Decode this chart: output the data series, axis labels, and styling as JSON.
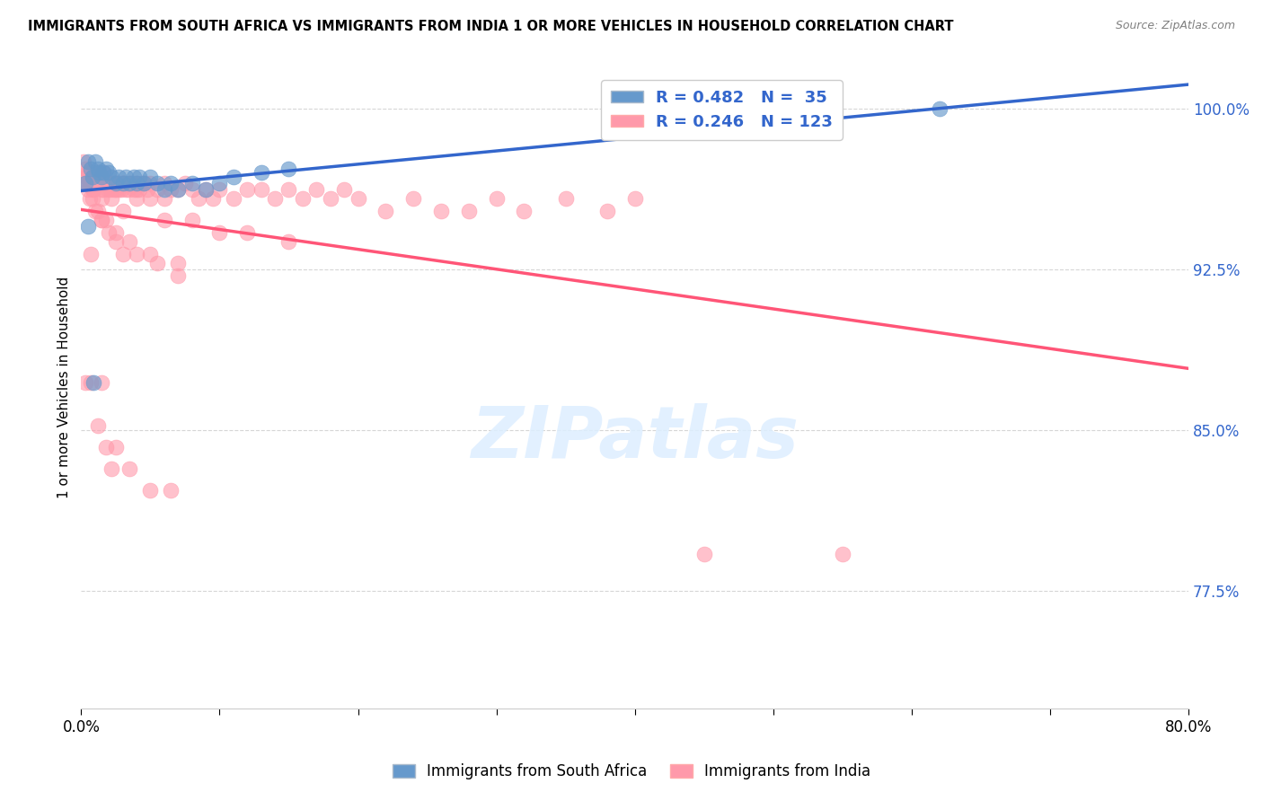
{
  "title": "IMMIGRANTS FROM SOUTH AFRICA VS IMMIGRANTS FROM INDIA 1 OR MORE VEHICLES IN HOUSEHOLD CORRELATION CHART",
  "source": "Source: ZipAtlas.com",
  "ylabel": "1 or more Vehicles in Household",
  "xmin": 0.0,
  "xmax": 0.8,
  "ymin": 0.72,
  "ymax": 1.02,
  "yticks": [
    0.775,
    0.85,
    0.925,
    1.0
  ],
  "ytick_labels": [
    "77.5%",
    "85.0%",
    "92.5%",
    "100.0%"
  ],
  "xticks": [
    0.0,
    0.1,
    0.2,
    0.3,
    0.4,
    0.5,
    0.6,
    0.7,
    0.8
  ],
  "xtick_labels": [
    "0.0%",
    "",
    "",
    "",
    "",
    "",
    "",
    "",
    "80.0%"
  ],
  "legend_r1": "R = 0.482",
  "legend_n1": "N =  35",
  "legend_r2": "R = 0.246",
  "legend_n2": "N = 123",
  "blue_color": "#6699CC",
  "pink_color": "#FF99AA",
  "blue_line_color": "#3366CC",
  "pink_line_color": "#FF5577",
  "watermark": "ZIPatlas",
  "south_africa_x": [
    0.003,
    0.005,
    0.007,
    0.008,
    0.01,
    0.012,
    0.013,
    0.015,
    0.016,
    0.018,
    0.02,
    0.022,
    0.025,
    0.027,
    0.03,
    0.032,
    0.035,
    0.038,
    0.04,
    0.042,
    0.045,
    0.05,
    0.055,
    0.06,
    0.065,
    0.07,
    0.08,
    0.09,
    0.1,
    0.11,
    0.13,
    0.15,
    0.62,
    0.005,
    0.009
  ],
  "south_africa_y": [
    0.965,
    0.975,
    0.972,
    0.968,
    0.975,
    0.972,
    0.97,
    0.968,
    0.97,
    0.972,
    0.97,
    0.968,
    0.965,
    0.968,
    0.965,
    0.968,
    0.965,
    0.968,
    0.965,
    0.968,
    0.965,
    0.968,
    0.965,
    0.962,
    0.965,
    0.962,
    0.965,
    0.962,
    0.965,
    0.968,
    0.97,
    0.972,
    1.0,
    0.945,
    0.872
  ],
  "india_x": [
    0.002,
    0.003,
    0.004,
    0.005,
    0.006,
    0.007,
    0.008,
    0.009,
    0.01,
    0.011,
    0.012,
    0.013,
    0.014,
    0.015,
    0.016,
    0.017,
    0.018,
    0.019,
    0.02,
    0.021,
    0.022,
    0.023,
    0.024,
    0.025,
    0.026,
    0.027,
    0.028,
    0.029,
    0.03,
    0.031,
    0.032,
    0.034,
    0.035,
    0.037,
    0.038,
    0.04,
    0.042,
    0.044,
    0.046,
    0.048,
    0.05,
    0.055,
    0.06,
    0.065,
    0.07,
    0.075,
    0.08,
    0.085,
    0.09,
    0.095,
    0.1,
    0.11,
    0.12,
    0.13,
    0.14,
    0.15,
    0.16,
    0.17,
    0.18,
    0.19,
    0.2,
    0.22,
    0.24,
    0.26,
    0.28,
    0.3,
    0.32,
    0.35,
    0.38,
    0.4,
    0.005,
    0.008,
    0.012,
    0.016,
    0.02,
    0.025,
    0.03,
    0.04,
    0.05,
    0.06,
    0.008,
    0.015,
    0.022,
    0.03,
    0.04,
    0.06,
    0.08,
    0.1,
    0.12,
    0.15,
    0.002,
    0.005,
    0.008,
    0.012,
    0.015,
    0.018,
    0.025,
    0.035,
    0.05,
    0.07,
    0.003,
    0.006,
    0.01,
    0.015,
    0.02,
    0.025,
    0.03,
    0.04,
    0.055,
    0.07,
    0.003,
    0.007,
    0.012,
    0.018,
    0.025,
    0.035,
    0.05,
    0.065,
    0.45,
    0.55,
    0.007,
    0.015,
    0.022
  ],
  "india_y": [
    0.975,
    0.972,
    0.968,
    0.97,
    0.965,
    0.97,
    0.965,
    0.962,
    0.97,
    0.965,
    0.968,
    0.97,
    0.965,
    0.962,
    0.97,
    0.965,
    0.965,
    0.962,
    0.965,
    0.962,
    0.965,
    0.965,
    0.962,
    0.965,
    0.965,
    0.962,
    0.965,
    0.962,
    0.965,
    0.965,
    0.962,
    0.962,
    0.965,
    0.965,
    0.962,
    0.965,
    0.962,
    0.965,
    0.965,
    0.962,
    0.965,
    0.962,
    0.965,
    0.962,
    0.962,
    0.965,
    0.962,
    0.958,
    0.962,
    0.958,
    0.962,
    0.958,
    0.962,
    0.962,
    0.958,
    0.962,
    0.958,
    0.962,
    0.958,
    0.962,
    0.958,
    0.952,
    0.958,
    0.952,
    0.952,
    0.958,
    0.952,
    0.958,
    0.952,
    0.958,
    0.97,
    0.965,
    0.965,
    0.962,
    0.965,
    0.962,
    0.965,
    0.962,
    0.958,
    0.958,
    0.962,
    0.958,
    0.958,
    0.952,
    0.958,
    0.948,
    0.948,
    0.942,
    0.942,
    0.938,
    0.965,
    0.962,
    0.958,
    0.952,
    0.948,
    0.948,
    0.942,
    0.938,
    0.932,
    0.928,
    0.965,
    0.958,
    0.952,
    0.948,
    0.942,
    0.938,
    0.932,
    0.932,
    0.928,
    0.922,
    0.872,
    0.872,
    0.852,
    0.842,
    0.842,
    0.832,
    0.822,
    0.822,
    0.792,
    0.792,
    0.932,
    0.872,
    0.832
  ]
}
